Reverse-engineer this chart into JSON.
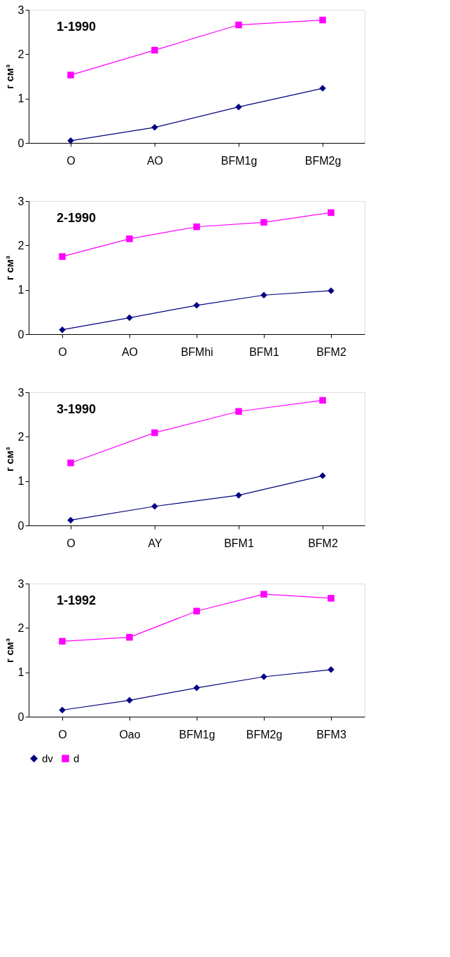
{
  "chart_data": [
    {
      "type": "line",
      "title": "1-1990",
      "ylabel": "г см³",
      "categories": [
        "O",
        "AO",
        "BFM1g",
        "BFM2g"
      ],
      "ylim": [
        0,
        3
      ],
      "yticks": [
        0,
        1,
        2,
        3
      ],
      "grid": false,
      "legend": "bottom",
      "series": [
        {
          "name": "dv",
          "color": "#000080",
          "marker": "diamond",
          "values": [
            0.05,
            0.35,
            0.81,
            1.23
          ]
        },
        {
          "name": "d",
          "color": "#ff00ff",
          "marker": "square",
          "values": [
            1.53,
            2.09,
            2.66,
            2.77
          ]
        }
      ]
    },
    {
      "type": "line",
      "title": "2-1990",
      "ylabel": "г см³",
      "categories": [
        "O",
        "AO",
        "BFMhi",
        "BFM1",
        "BFM2"
      ],
      "ylim": [
        0,
        3
      ],
      "yticks": [
        0,
        1,
        2,
        3
      ],
      "grid": false,
      "legend": "bottom",
      "series": [
        {
          "name": "dv",
          "color": "#000080",
          "marker": "diamond",
          "values": [
            0.1,
            0.37,
            0.65,
            0.88,
            0.98
          ]
        },
        {
          "name": "d",
          "color": "#ff00ff",
          "marker": "square",
          "values": [
            1.75,
            2.15,
            2.42,
            2.52,
            2.74
          ]
        }
      ]
    },
    {
      "type": "line",
      "title": "3-1990",
      "ylabel": "г см³",
      "categories": [
        "O",
        "AY",
        "BFM1",
        "BFM2"
      ],
      "ylim": [
        0,
        3
      ],
      "yticks": [
        0,
        1,
        2,
        3
      ],
      "grid": false,
      "legend": "bottom",
      "series": [
        {
          "name": "dv",
          "color": "#000080",
          "marker": "diamond",
          "values": [
            0.12,
            0.43,
            0.68,
            1.12
          ]
        },
        {
          "name": "d",
          "color": "#ff00ff",
          "marker": "square",
          "values": [
            1.41,
            2.09,
            2.57,
            2.82
          ]
        }
      ]
    },
    {
      "type": "line",
      "title": "1-1992",
      "ylabel": "г см³",
      "categories": [
        "O",
        "Oao",
        "BFM1g",
        "BFM2g",
        "BFM3"
      ],
      "ylim": [
        0,
        3
      ],
      "yticks": [
        0,
        1,
        2,
        3
      ],
      "grid": false,
      "legend": "bottom",
      "series": [
        {
          "name": "dv",
          "color": "#000080",
          "marker": "diamond",
          "values": [
            0.15,
            0.37,
            0.65,
            0.9,
            1.06
          ]
        },
        {
          "name": "d",
          "color": "#ff00ff",
          "marker": "square",
          "values": [
            1.7,
            1.79,
            2.38,
            2.76,
            2.67
          ]
        }
      ]
    }
  ]
}
